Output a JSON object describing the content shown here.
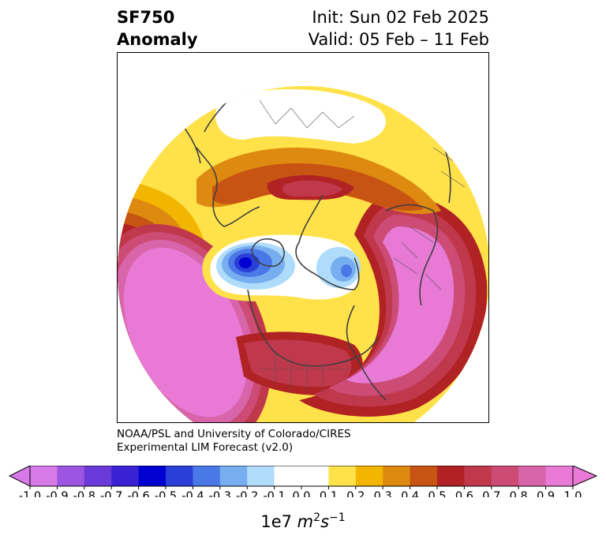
{
  "header": {
    "variable": "SF750",
    "field": "Anomaly",
    "init": "Init: Sun 02 Feb 2025",
    "valid": "Valid: 05 Feb – 11 Feb"
  },
  "credit": {
    "line1": "NOAA/PSL and University of Colorado/CIRES",
    "line2": "Experimental LIM Forecast (v2.0)"
  },
  "colorbar": {
    "unit_base": "1e7 ",
    "unit_m": "m",
    "unit_m_exp": "2",
    "unit_s": "s",
    "unit_s_exp": "−1",
    "ticks": [
      "-1.0",
      "-0.9",
      "-0.8",
      "-0.7",
      "-0.6",
      "-0.5",
      "-0.4",
      "-0.3",
      "-0.2",
      "-0.1",
      "0.0",
      "0.1",
      "0.2",
      "0.3",
      "0.4",
      "0.5",
      "0.6",
      "0.7",
      "0.8",
      "0.9",
      "1.0"
    ],
    "under_color": "#d67ae8",
    "over_color": "#e87ad6",
    "colors": [
      "#d67ae8",
      "#9b55e0",
      "#6a3ad8",
      "#3a22d4",
      "#0000d0",
      "#2a3ed8",
      "#4a78e6",
      "#76aef0",
      "#b0dcfc",
      "#ffffff",
      "#ffffff",
      "#ffe24a",
      "#f2b600",
      "#de8a10",
      "#c85414",
      "#b02224",
      "#c0384c",
      "#cc4c76",
      "#d864aa",
      "#e87ad6"
    ]
  }
}
